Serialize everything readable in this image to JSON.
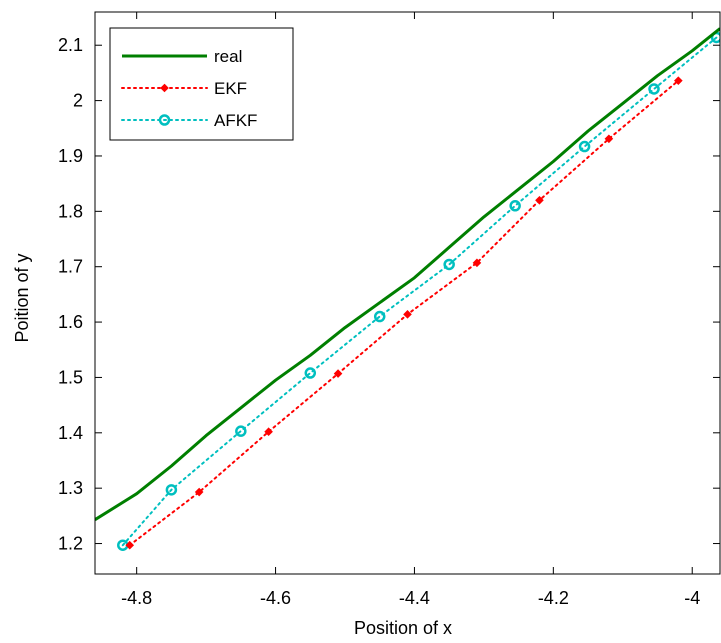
{
  "chart_data": {
    "type": "line",
    "title": "",
    "xlabel": "Position of x",
    "ylabel": "Poition of y",
    "xlim": [
      -4.86,
      -3.96
    ],
    "ylim": [
      1.145,
      2.16
    ],
    "xticks": [
      -4.8,
      -4.6,
      -4.4,
      -4.2,
      -4.0
    ],
    "xtick_labels": [
      "-4.8",
      "-4.6",
      "-4.4",
      "-4.2",
      "-4"
    ],
    "yticks": [
      1.2,
      1.3,
      1.4,
      1.5,
      1.6,
      1.7,
      1.8,
      1.9,
      2.0,
      2.1
    ],
    "ytick_labels": [
      "1.2",
      "1.3",
      "1.4",
      "1.5",
      "1.6",
      "1.7",
      "1.8",
      "1.9",
      "2",
      "2.1"
    ],
    "grid": false,
    "legend_position": "top-left",
    "series": [
      {
        "name": "real",
        "color": "#007f00",
        "style": "solid",
        "marker": "none",
        "x": [
          -4.86,
          -4.8,
          -4.75,
          -4.7,
          -4.65,
          -4.6,
          -4.55,
          -4.5,
          -4.45,
          -4.4,
          -4.35,
          -4.3,
          -4.25,
          -4.2,
          -4.15,
          -4.1,
          -4.05,
          -4.0,
          -3.96
        ],
        "y": [
          1.243,
          1.29,
          1.34,
          1.395,
          1.445,
          1.495,
          1.54,
          1.59,
          1.635,
          1.68,
          1.735,
          1.79,
          1.84,
          1.89,
          1.945,
          1.995,
          2.045,
          2.09,
          2.13
        ]
      },
      {
        "name": "EKF",
        "color": "#ff0000",
        "style": "dotted",
        "marker": "diamond",
        "x": [
          -4.81,
          -4.71,
          -4.61,
          -4.51,
          -4.41,
          -4.31,
          -4.22,
          -4.12,
          -4.02
        ],
        "y": [
          1.197,
          1.293,
          1.402,
          1.507,
          1.614,
          1.707,
          1.82,
          1.931,
          2.036
        ]
      },
      {
        "name": "AFKF",
        "color": "#00bfbf",
        "style": "dotted",
        "marker": "circle",
        "x": [
          -4.82,
          -4.75,
          -4.65,
          -4.55,
          -4.45,
          -4.35,
          -4.255,
          -4.155,
          -4.055,
          -3.965
        ],
        "y": [
          1.197,
          1.297,
          1.403,
          1.508,
          1.61,
          1.704,
          1.81,
          1.917,
          2.021,
          2.114
        ]
      }
    ]
  }
}
